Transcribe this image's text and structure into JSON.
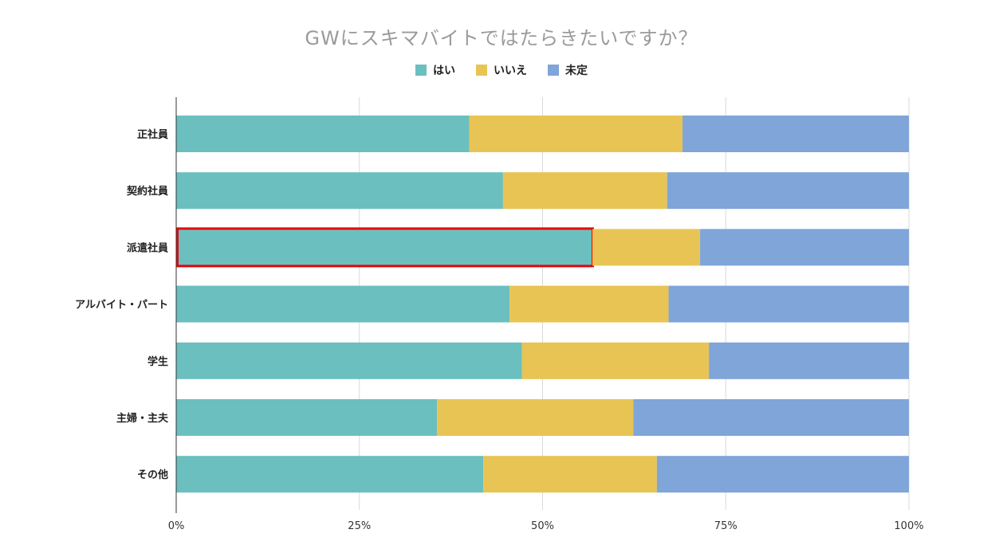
{
  "chart_data": {
    "type": "bar",
    "orientation": "horizontal",
    "stacked": "percent",
    "title": "GWにスキマバイトではたらきたいですか？",
    "categories": [
      "正社員",
      "契約社員",
      "派遣社員",
      "アルバイト・パート",
      "学生",
      "主婦・主夫",
      "その他"
    ],
    "series": [
      {
        "name": "はい",
        "color": "#6cbfbf",
        "values": [
          40,
          44.6,
          56.8,
          45.5,
          47.2,
          35.6,
          41.9
        ]
      },
      {
        "name": "いいえ",
        "color": "#e8c454",
        "values": [
          29.1,
          22.4,
          14.7,
          21.7,
          25.5,
          26.8,
          23.7
        ]
      },
      {
        "name": "未定",
        "color": "#7fa5d9",
        "values": [
          30.9,
          33,
          28.5,
          32.8,
          27.3,
          37.6,
          34.4
        ]
      }
    ],
    "x_ticks": [
      "0%",
      "25%",
      "50%",
      "75%",
      "100%"
    ],
    "xlim": [
      0,
      100
    ],
    "grid": true,
    "legend_position": "top",
    "highlight": {
      "category": "派遣社員",
      "series": "はい",
      "color": "#e8000b"
    }
  }
}
